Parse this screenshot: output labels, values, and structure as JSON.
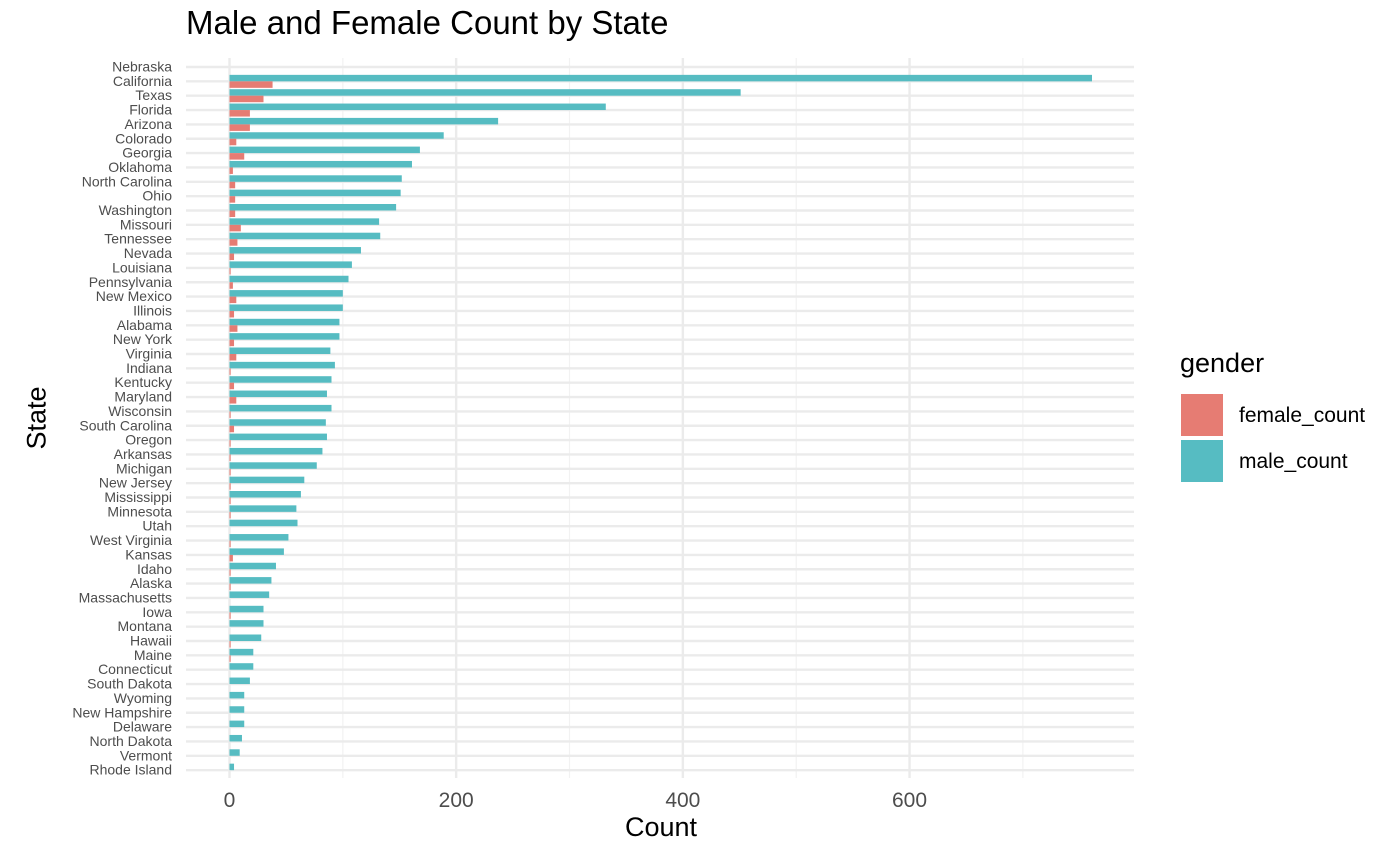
{
  "chart_data": {
    "type": "bar",
    "orientation": "horizontal",
    "bar_position": "dodge",
    "title": "Male and Female Count by State",
    "xlabel": "Count",
    "ylabel": "State",
    "xlim": [
      -38,
      800
    ],
    "x_ticks": [
      0,
      200,
      400,
      600
    ],
    "x_tick_labels": [
      "0",
      "200",
      "400",
      "600"
    ],
    "grid": true,
    "legend": {
      "title": "gender",
      "position": "right"
    },
    "categories": [
      "Nebraska",
      "California",
      "Texas",
      "Florida",
      "Arizona",
      "Colorado",
      "Georgia",
      "Oklahoma",
      "North Carolina",
      "Ohio",
      "Washington",
      "Missouri",
      "Tennessee",
      "Nevada",
      "Louisiana",
      "Pennsylvania",
      "New Mexico",
      "Illinois",
      "Alabama",
      "New York",
      "Virginia",
      "Indiana",
      "Kentucky",
      "Maryland",
      "Wisconsin",
      "South Carolina",
      "Oregon",
      "Arkansas",
      "Michigan",
      "New Jersey",
      "Mississippi",
      "Minnesota",
      "Utah",
      "West Virginia",
      "Kansas",
      "Idaho",
      "Alaska",
      "Massachusetts",
      "Iowa",
      "Montana",
      "Hawaii",
      "Maine",
      "Connecticut",
      "South Dakota",
      "Wyoming",
      "New Hampshire",
      "Delaware",
      "North Dakota",
      "Vermont",
      "Rhode Island"
    ],
    "series": [
      {
        "name": "female_count",
        "color": "#e67c73",
        "values": [
          0,
          38,
          30,
          18,
          18,
          6,
          13,
          3,
          5,
          5,
          5,
          10,
          7,
          4,
          1,
          3,
          6,
          4,
          7,
          4,
          6,
          1,
          4,
          6,
          1,
          4,
          1,
          1,
          1,
          1,
          1,
          1,
          0,
          1,
          3,
          1,
          1,
          0,
          1,
          0,
          1,
          1,
          0,
          0,
          0,
          0,
          0,
          0,
          0,
          0
        ]
      },
      {
        "name": "male_count",
        "color": "#56bcc2",
        "values": [
          0,
          761,
          451,
          332,
          237,
          189,
          168,
          161,
          152,
          151,
          147,
          132,
          133,
          116,
          108,
          105,
          100,
          100,
          97,
          97,
          89,
          93,
          90,
          86,
          90,
          85,
          86,
          82,
          77,
          66,
          63,
          59,
          60,
          52,
          48,
          41,
          37,
          35,
          30,
          30,
          28,
          21,
          21,
          18,
          13,
          13,
          13,
          11,
          9,
          4
        ]
      }
    ]
  }
}
